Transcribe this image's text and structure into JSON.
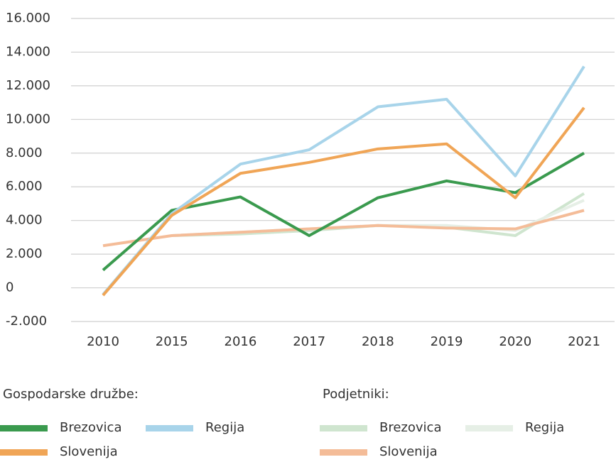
{
  "chart_data": {
    "type": "line",
    "categories": [
      "2010",
      "2015",
      "2016",
      "2017",
      "2018",
      "2019",
      "2020",
      "2021"
    ],
    "legend_titles": [
      "Gospodarske družbe:",
      "Podjetniki:"
    ],
    "series": [
      {
        "name": "Brezovica",
        "color": "#3a9a4e",
        "values": [
          1050,
          4600,
          5400,
          3100,
          5350,
          6350,
          5650,
          8000
        ]
      },
      {
        "name": "Regija",
        "color": "#a8d4ea",
        "values": [
          -400,
          4400,
          7350,
          8200,
          10750,
          11200,
          6650,
          13150
        ]
      },
      {
        "name": "Slovenija",
        "color": "#f0a556",
        "values": [
          -450,
          4300,
          6800,
          7450,
          8250,
          8550,
          5350,
          10700
        ]
      },
      {
        "name": "Brezovica",
        "color": "#cfe5cf",
        "values": [
          null,
          3100,
          3200,
          3400,
          3700,
          3600,
          3100,
          5600
        ]
      },
      {
        "name": "Regija",
        "color": "#e6efe6",
        "values": [
          null,
          3100,
          3300,
          3500,
          3700,
          3700,
          3400,
          5200
        ]
      },
      {
        "name": "Slovenija",
        "color": "#f4bc98",
        "values": [
          2500,
          3100,
          3300,
          3500,
          3700,
          3550,
          3500,
          4600
        ]
      }
    ],
    "ylim": [
      -2000,
      16000
    ],
    "yticks": [
      {
        "value": -2000,
        "label": "-2.000"
      },
      0,
      {
        "value": 2000,
        "label": "2.000"
      },
      {
        "value": 4000,
        "label": "4.000"
      },
      {
        "value": 6000,
        "label": "6.000"
      },
      {
        "value": 8000,
        "label": "8.000"
      },
      {
        "value": 10000,
        "label": "10.000"
      },
      {
        "value": 12000,
        "label": "12.000"
      },
      {
        "value": 14000,
        "label": "14.000"
      },
      {
        "value": 16000,
        "label": "16.000"
      }
    ],
    "grid": true
  }
}
